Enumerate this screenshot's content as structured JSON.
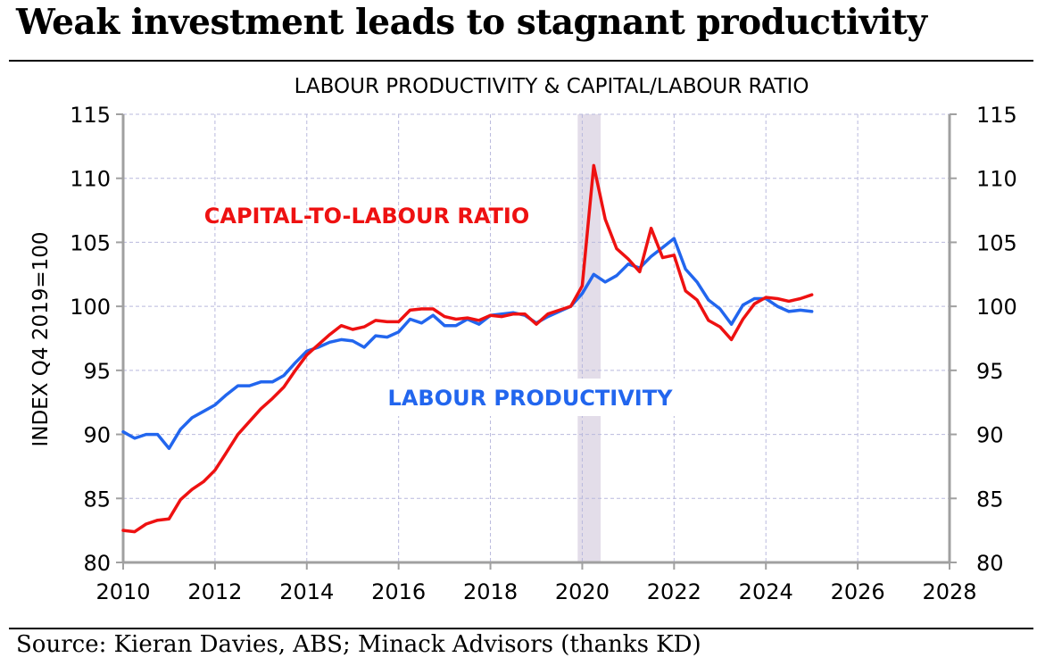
{
  "headline": "Weak investment leads to stagnant productivity",
  "source": "Source: Kieran Davies, ABS; Minack Advisors (thanks KD)",
  "colors": {
    "red": "#ee1111",
    "blue": "#2266ee",
    "shade": "#e3dde9",
    "grid": "#b9b9dd"
  },
  "chart_data": {
    "type": "line",
    "title": "LABOUR PRODUCTIVITY & CAPITAL/LABOUR RATIO",
    "ylabel": "INDEX Q4 2019=100",
    "xlim": [
      2010,
      2028
    ],
    "ylim": [
      80,
      115
    ],
    "xticks": [
      "2010",
      "2012",
      "2014",
      "2016",
      "2018",
      "2020",
      "2022",
      "2024",
      "2026",
      "2028"
    ],
    "yticks": [
      "80",
      "85",
      "90",
      "95",
      "100",
      "105",
      "110",
      "115"
    ],
    "grid": true,
    "shaded_period": [
      2019.9,
      2020.4
    ],
    "x": [
      2010.0,
      2010.25,
      2010.5,
      2010.75,
      2011.0,
      2011.25,
      2011.5,
      2011.75,
      2012.0,
      2012.25,
      2012.5,
      2012.75,
      2013.0,
      2013.25,
      2013.5,
      2013.75,
      2014.0,
      2014.25,
      2014.5,
      2014.75,
      2015.0,
      2015.25,
      2015.5,
      2015.75,
      2016.0,
      2016.25,
      2016.5,
      2016.75,
      2017.0,
      2017.25,
      2017.5,
      2017.75,
      2018.0,
      2018.25,
      2018.5,
      2018.75,
      2019.0,
      2019.25,
      2019.5,
      2019.75,
      2020.0,
      2020.25,
      2020.5,
      2020.75,
      2021.0,
      2021.25,
      2021.5,
      2021.75,
      2022.0,
      2022.25,
      2022.5,
      2022.75,
      2023.0,
      2023.25,
      2023.5,
      2023.75,
      2024.0,
      2024.25,
      2024.5,
      2024.75,
      2025.0
    ],
    "series": [
      {
        "name": "CAPITAL-TO-LABOUR RATIO",
        "color": "#ee1111",
        "values": [
          82.5,
          82.4,
          83.0,
          83.3,
          83.4,
          84.9,
          85.7,
          86.3,
          87.2,
          88.6,
          90.0,
          91.0,
          92.0,
          92.8,
          93.7,
          95.0,
          96.2,
          97.0,
          97.8,
          98.5,
          98.2,
          98.4,
          98.9,
          98.8,
          98.8,
          99.7,
          99.8,
          99.8,
          99.2,
          99.0,
          99.1,
          98.9,
          99.3,
          99.2,
          99.4,
          99.4,
          98.6,
          99.4,
          99.7,
          100.0,
          101.6,
          111.0,
          106.8,
          104.5,
          103.7,
          102.7,
          106.1,
          103.8,
          104.0,
          101.2,
          100.5,
          98.9,
          98.4,
          97.4,
          99.0,
          100.2,
          100.7,
          100.6,
          100.4,
          100.6,
          100.9
        ]
      },
      {
        "name": "LABOUR PRODUCTIVITY",
        "color": "#2266ee",
        "values": [
          90.2,
          89.7,
          90.0,
          90.0,
          88.9,
          90.4,
          91.3,
          91.8,
          92.3,
          93.1,
          93.8,
          93.8,
          94.1,
          94.1,
          94.6,
          95.6,
          96.5,
          96.8,
          97.2,
          97.4,
          97.3,
          96.8,
          97.7,
          97.6,
          98.0,
          99.0,
          98.7,
          99.3,
          98.5,
          98.5,
          99.0,
          98.6,
          99.3,
          99.4,
          99.5,
          99.3,
          98.7,
          99.2,
          99.6,
          100.0,
          101.0,
          102.5,
          101.9,
          102.4,
          103.3,
          103.0,
          103.9,
          104.6,
          105.3,
          102.9,
          101.9,
          100.5,
          99.8,
          98.6,
          100.1,
          100.6,
          100.6,
          100.0,
          99.6,
          99.7,
          99.6
        ]
      }
    ],
    "annotations": [
      {
        "text": "CAPITAL-TO-LABOUR RATIO",
        "color": "#ee1111"
      },
      {
        "text": "LABOUR PRODUCTIVITY",
        "color": "#2266ee"
      }
    ]
  }
}
